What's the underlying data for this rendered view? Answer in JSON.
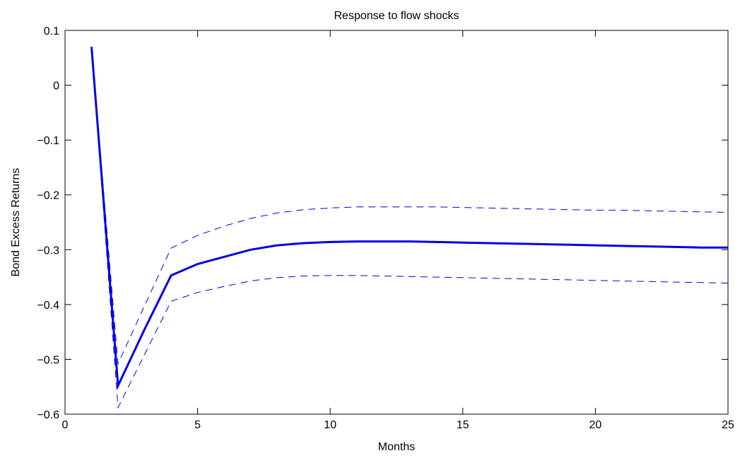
{
  "chart_data": {
    "type": "line",
    "title": "Response to flow shocks",
    "xlabel": "Months",
    "ylabel": "Bond Excess Returns",
    "xlim": [
      0,
      25
    ],
    "ylim": [
      -0.6,
      0.1
    ],
    "xticks": [
      0,
      5,
      10,
      15,
      20,
      25
    ],
    "xtick_labels": [
      "0",
      "5",
      "10",
      "15",
      "20",
      "25"
    ],
    "yticks": [
      0.1,
      0,
      -0.1,
      -0.2,
      -0.3,
      -0.4,
      -0.5,
      -0.6
    ],
    "ytick_labels": [
      "0.1",
      "0",
      "−0.1",
      "−0.2",
      "−0.3",
      "−0.4",
      "−0.5",
      "−0.6"
    ],
    "grid": false,
    "colors": {
      "line": "#0000e6",
      "axes": "#000000"
    },
    "series": [
      {
        "style": "solid",
        "x": [
          1,
          2,
          3,
          4,
          5,
          6,
          7,
          8,
          9,
          10,
          11,
          12,
          13,
          14,
          15,
          16,
          17,
          18,
          19,
          20,
          21,
          22,
          23,
          24,
          25
        ],
        "y": [
          0.07,
          -0.548,
          -0.445,
          -0.347,
          -0.326,
          -0.313,
          -0.3,
          -0.292,
          -0.288,
          -0.286,
          -0.285,
          -0.285,
          -0.285,
          -0.286,
          -0.287,
          -0.288,
          -0.289,
          -0.29,
          -0.291,
          -0.292,
          -0.293,
          -0.294,
          -0.295,
          -0.296,
          -0.296
        ]
      },
      {
        "style": "dashed",
        "x": [
          1,
          2,
          3,
          4,
          5,
          6,
          7,
          8,
          9,
          10,
          11,
          12,
          13,
          14,
          15,
          16,
          17,
          18,
          19,
          20,
          21,
          22,
          23,
          24,
          25
        ],
        "y": [
          0.07,
          -0.508,
          -0.402,
          -0.297,
          -0.274,
          -0.257,
          -0.243,
          -0.233,
          -0.227,
          -0.224,
          -0.222,
          -0.222,
          -0.222,
          -0.222,
          -0.223,
          -0.224,
          -0.225,
          -0.226,
          -0.227,
          -0.228,
          -0.228,
          -0.229,
          -0.23,
          -0.231,
          -0.232
        ]
      },
      {
        "style": "dashed",
        "x": [
          1,
          2,
          3,
          4,
          5,
          6,
          7,
          8,
          9,
          10,
          11,
          12,
          13,
          14,
          15,
          16,
          17,
          18,
          19,
          20,
          21,
          22,
          23,
          24,
          25
        ],
        "y": [
          0.07,
          -0.588,
          -0.491,
          -0.394,
          -0.378,
          -0.367,
          -0.357,
          -0.351,
          -0.348,
          -0.347,
          -0.347,
          -0.348,
          -0.349,
          -0.35,
          -0.351,
          -0.352,
          -0.353,
          -0.354,
          -0.355,
          -0.356,
          -0.357,
          -0.358,
          -0.359,
          -0.36,
          -0.361
        ]
      }
    ]
  }
}
